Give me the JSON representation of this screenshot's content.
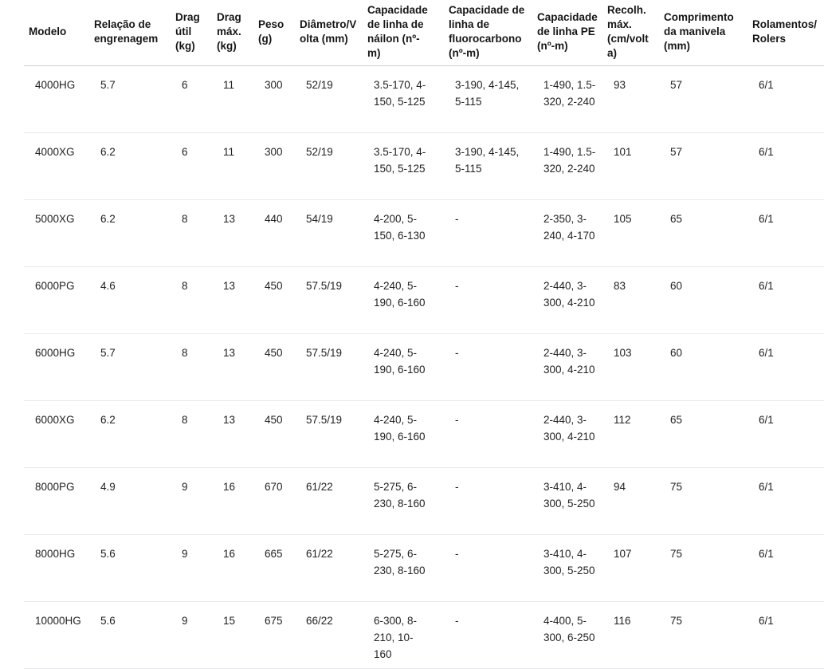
{
  "colors": {
    "background": "#ffffff",
    "header_text": "#161616",
    "body_text": "#222222",
    "header_divider": "#cfcfcf",
    "row_divider": "#e9e9ec"
  },
  "table": {
    "columns": [
      {
        "label": "Modelo"
      },
      {
        "label": "Relação de engrenagem"
      },
      {
        "label": "Drag útil (kg)"
      },
      {
        "label": "Drag máx. (kg)"
      },
      {
        "label": "Peso (g)"
      },
      {
        "label": "Diâmetro/Volta (mm)"
      },
      {
        "label": "Capacidade de linha de náilon (nº-m)"
      },
      {
        "label": "Capacidade de linha de fluorocarbono (nº-m)"
      },
      {
        "label": "Capacidade de linha PE (nº-m)"
      },
      {
        "label": "Recolh. máx. (cm/volta)"
      },
      {
        "label": "Comprimento da manivela (mm)"
      },
      {
        "label": "Rolamentos/Rolers"
      }
    ],
    "rows": [
      {
        "cells": [
          "4000HG",
          "5.7",
          "6",
          "11",
          "300",
          "52/19",
          "3.5-170, 4-150, 5-125",
          "3-190, 4-145, 5-115",
          "1-490, 1.5-320, 2-240",
          "93",
          "57",
          "6/1"
        ]
      },
      {
        "cells": [
          "4000XG",
          "6.2",
          "6",
          "11",
          "300",
          "52/19",
          "3.5-170, 4-150, 5-125",
          "3-190, 4-145, 5-115",
          "1-490, 1.5-320, 2-240",
          "101",
          "57",
          "6/1"
        ]
      },
      {
        "cells": [
          "5000XG",
          "6.2",
          "8",
          "13",
          "440",
          "54/19",
          "4-200, 5-150, 6-130",
          "-",
          "2-350, 3-240, 4-170",
          "105",
          "65",
          "6/1"
        ]
      },
      {
        "cells": [
          "6000PG",
          "4.6",
          "8",
          "13",
          "450",
          "57.5/19",
          "4-240, 5-190, 6-160",
          "-",
          "2-440, 3-300, 4-210",
          "83",
          "60",
          "6/1"
        ]
      },
      {
        "cells": [
          "6000HG",
          "5.7",
          "8",
          "13",
          "450",
          "57.5/19",
          "4-240, 5-190, 6-160",
          "-",
          "2-440, 3-300, 4-210",
          "103",
          "60",
          "6/1"
        ]
      },
      {
        "cells": [
          "6000XG",
          "6.2",
          "8",
          "13",
          "450",
          "57.5/19",
          "4-240, 5-190, 6-160",
          "-",
          "2-440, 3-300, 4-210",
          "112",
          "65",
          "6/1"
        ]
      },
      {
        "cells": [
          "8000PG",
          "4.9",
          "9",
          "16",
          "670",
          "61/22",
          "5-275, 6-230, 8-160",
          "-",
          "3-410, 4-300, 5-250",
          "94",
          "75",
          "6/1"
        ]
      },
      {
        "cells": [
          "8000HG",
          "5.6",
          "9",
          "16",
          "665",
          "61/22",
          "5-275, 6-230, 8-160",
          "-",
          "3-410, 4-300, 5-250",
          "107",
          "75",
          "6/1"
        ]
      },
      {
        "cells": [
          "10000HG",
          "5.6",
          "9",
          "15",
          "675",
          "66/22",
          "6-300, 8-210, 10-160",
          "-",
          "4-400, 5-300, 6-250",
          "116",
          "75",
          "6/1"
        ]
      }
    ]
  }
}
